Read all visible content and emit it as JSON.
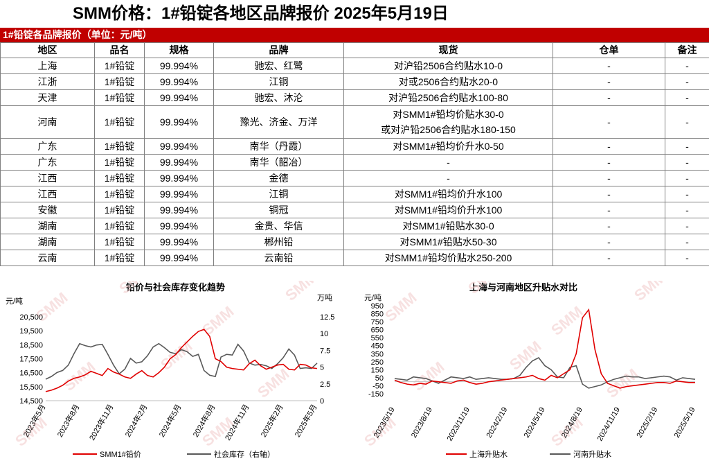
{
  "page_title": "SMM价格：1#铅锭各地区品牌报价 2025年5月19日",
  "section_title": "1#铅锭各品牌报价（单位：元/吨）",
  "table": {
    "headers": [
      "地区",
      "品名",
      "规格",
      "品牌",
      "现货",
      "仓单",
      "备注"
    ],
    "rows": [
      [
        "上海",
        "1#铅锭",
        "99.994%",
        "驰宏、红鹭",
        "对沪铅2506合约贴水10-0",
        "-",
        "-"
      ],
      [
        "江浙",
        "1#铅锭",
        "99.994%",
        "江铜",
        "对或2506合约贴水20-0",
        "-",
        "-"
      ],
      [
        "天津",
        "1#铅锭",
        "99.994%",
        "驰宏、沐沦",
        "对沪铅2506合约贴水100-80",
        "-",
        "-"
      ],
      [
        "河南",
        "1#铅锭",
        "99.994%",
        "豫光、济金、万洋",
        "对SMM1#铅均价贴水30-0\n或对沪铅2506合约贴水180-150",
        "-",
        "-"
      ],
      [
        "广东",
        "1#铅锭",
        "99.994%",
        "南华（丹霞）",
        "对SMM1#铅均价升水0-50",
        "-",
        "-"
      ],
      [
        "广东",
        "1#铅锭",
        "99.994%",
        "南华（韶冶）",
        "-",
        "-",
        "-"
      ],
      [
        "江西",
        "1#铅锭",
        "99.994%",
        "金德",
        "-",
        "-",
        "-"
      ],
      [
        "江西",
        "1#铅锭",
        "99.994%",
        "江铜",
        "对SMM1#铅均价升水100",
        "-",
        "-"
      ],
      [
        "安徽",
        "1#铅锭",
        "99.994%",
        "铜冠",
        "对SMM1#铅均价升水100",
        "-",
        "-"
      ],
      [
        "湖南",
        "1#铅锭",
        "99.994%",
        "金贵、华信",
        "对SMM1#铅贴水30-0",
        "-",
        "-"
      ],
      [
        "湖南",
        "1#铅锭",
        "99.994%",
        "郴州铅",
        "对SMM1#铅贴水50-30",
        "-",
        "-"
      ],
      [
        "云南",
        "1#铅锭",
        "99.994%",
        "云南铅",
        "对SMM1#铅均价贴水250-200",
        "-",
        "-"
      ]
    ]
  },
  "colors": {
    "accent": "#c00000",
    "series_red": "#e00000",
    "series_gray": "#595959",
    "watermark": "#f2c9c9"
  },
  "watermark_text": "SMM",
  "chart_data": [
    {
      "type": "line",
      "title": "铅价与社会库存变化趋势",
      "ylabel": "元/吨",
      "y2label": "万吨",
      "ylim": [
        14500,
        20500
      ],
      "y2lim": [
        0,
        12.5
      ],
      "yticks": [
        "20,500",
        "19,500",
        "18,500",
        "17,500",
        "16,500",
        "15,500",
        "14,500"
      ],
      "y2ticks": [
        "12.5",
        "10",
        "7.5",
        "5",
        "2.5",
        "0"
      ],
      "xticks": [
        "2023年5月",
        "2023年8月",
        "2023年11月",
        "2024年2月",
        "2024年5月",
        "2024年8月",
        "2024年11月",
        "2025年2月",
        "2025年5月"
      ],
      "legend": "bottom",
      "series": [
        {
          "name": "SMM1#铅价",
          "axis": "left",
          "color": "#e00000",
          "values": [
            15150,
            15250,
            15400,
            15600,
            15900,
            16100,
            16200,
            16350,
            16600,
            16450,
            16300,
            16800,
            16550,
            16400,
            16200,
            16100,
            16400,
            16650,
            16300,
            16200,
            16500,
            16900,
            17500,
            17800,
            18300,
            18700,
            19100,
            19450,
            19600,
            19100,
            17500,
            17300,
            16900,
            16800,
            16750,
            16700,
            17150,
            17400,
            17000,
            16750,
            16900,
            17050,
            17100,
            16750,
            16700,
            17100,
            17050,
            16850,
            16800
          ]
        },
        {
          "name": "社会库存（右轴）",
          "axis": "right",
          "color": "#595959",
          "values": [
            3.2,
            3.6,
            4.2,
            4.5,
            5.3,
            7.0,
            8.5,
            8.2,
            8.0,
            8.3,
            8.4,
            6.9,
            5.3,
            4.0,
            4.7,
            6.3,
            5.6,
            5.8,
            6.7,
            8.0,
            8.5,
            7.9,
            7.2,
            7.0,
            7.6,
            7.3,
            6.6,
            6.9,
            4.5,
            3.8,
            3.6,
            6.5,
            6.9,
            6.8,
            8.4,
            7.4,
            5.6,
            5.3,
            5.4,
            5.2,
            4.8,
            5.5,
            6.4,
            7.7,
            6.8,
            4.8,
            4.9,
            4.8,
            5.6
          ]
        }
      ]
    },
    {
      "type": "line",
      "title": "上海与河南地区升贴水对比",
      "ylabel": "元/吨",
      "ylim": [
        -150,
        950
      ],
      "yticks": [
        "950",
        "850",
        "750",
        "650",
        "550",
        "450",
        "350",
        "250",
        "150",
        "50",
        "-50",
        "-150"
      ],
      "xticks": [
        "2023/5/19",
        "2023/8/19",
        "2023/11/19",
        "2024/2/19",
        "2024/5/19",
        "2024/8/19",
        "2024/11/19",
        "2025/2/19",
        "2025/5/19"
      ],
      "legend": "bottom",
      "series": [
        {
          "name": "上海升贴水",
          "color": "#e00000",
          "values": [
            20,
            -10,
            -30,
            -40,
            -20,
            -30,
            10,
            0,
            -10,
            -20,
            10,
            20,
            -10,
            -30,
            -20,
            0,
            10,
            20,
            30,
            40,
            50,
            60,
            80,
            40,
            20,
            80,
            50,
            100,
            150,
            350,
            800,
            900,
            400,
            100,
            -20,
            -50,
            -80,
            -60,
            -50,
            -40,
            -30,
            -20,
            -10,
            -10,
            -20,
            10,
            0,
            -10,
            -10
          ]
        },
        {
          "name": "河南升贴水",
          "color": "#595959",
          "values": [
            40,
            30,
            20,
            60,
            50,
            40,
            10,
            -20,
            20,
            60,
            50,
            40,
            60,
            30,
            40,
            50,
            40,
            30,
            30,
            40,
            80,
            180,
            260,
            300,
            200,
            150,
            60,
            50,
            180,
            200,
            -30,
            -80,
            -60,
            -40,
            0,
            30,
            50,
            70,
            60,
            60,
            40,
            50,
            60,
            70,
            60,
            20,
            50,
            40,
            30
          ]
        }
      ]
    }
  ]
}
